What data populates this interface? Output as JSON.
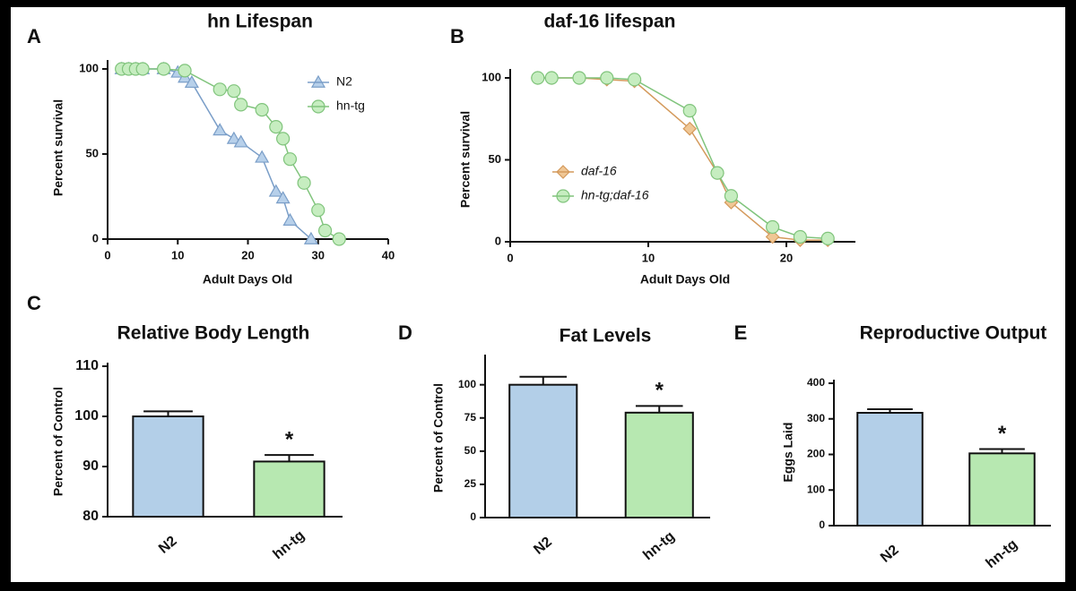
{
  "chart_data": [
    {
      "type": "line",
      "label": "A",
      "title": "hn Lifespan",
      "x_label": "Adult Days Old",
      "y_label": "Percent survival",
      "xlim": [
        0,
        40
      ],
      "xticks": [
        0,
        10,
        20,
        30,
        40
      ],
      "ylim": [
        0,
        100
      ],
      "yticks": [
        0,
        50,
        100
      ],
      "legend": "upper right",
      "series": [
        {
          "name": "N2",
          "color": "#b7d0ea",
          "stroke": "#7a9ec8",
          "marker": "triangle",
          "x": [
            2,
            3,
            4,
            5,
            8,
            10,
            11,
            12,
            16,
            18,
            19,
            22,
            24,
            25,
            26,
            29
          ],
          "values": [
            100,
            100,
            100,
            100,
            100,
            98,
            95,
            92,
            64,
            59,
            57,
            48,
            28,
            24,
            11,
            0
          ]
        },
        {
          "name": "hn-tg",
          "color": "#c6edc0",
          "stroke": "#80c47c",
          "marker": "circle",
          "x": [
            2,
            3,
            4,
            5,
            8,
            11,
            16,
            18,
            19,
            22,
            24,
            25,
            26,
            28,
            30,
            31,
            33
          ],
          "values": [
            100,
            100,
            100,
            100,
            100,
            99,
            88,
            87,
            79,
            76,
            66,
            59,
            47,
            33,
            17,
            5,
            0
          ]
        }
      ]
    },
    {
      "type": "line",
      "label": "B",
      "title": "daf-16 lifespan",
      "x_label": "Adult Days Old",
      "y_label": "Percent survival",
      "xlim": [
        0,
        25
      ],
      "xticks": [
        0,
        10,
        20
      ],
      "ylim": [
        0,
        100
      ],
      "yticks": [
        0,
        50,
        100
      ],
      "legend": "center left",
      "series": [
        {
          "name": "daf-16",
          "color": "#f0c795",
          "stroke": "#d49a5c",
          "marker": "diamond",
          "x": [
            2,
            3,
            5,
            7,
            9,
            13,
            15,
            16,
            19,
            21,
            23
          ],
          "values": [
            100,
            100,
            100,
            99,
            98,
            69,
            42,
            24,
            3,
            1,
            1
          ]
        },
        {
          "name": "hn-tg;daf-16",
          "color": "#c6edc0",
          "stroke": "#80c47c",
          "marker": "circle",
          "x": [
            2,
            3,
            5,
            7,
            9,
            13,
            15,
            16,
            19,
            21,
            23
          ],
          "values": [
            100,
            100,
            100,
            100,
            99,
            80,
            42,
            28,
            9,
            3,
            2
          ]
        }
      ]
    },
    {
      "type": "bar",
      "label": "C",
      "title": "Relative Body Length",
      "y_label": "Percent of Control",
      "categories": [
        "N2",
        "hn-tg"
      ],
      "values": [
        100,
        91
      ],
      "errors": [
        1,
        1.3
      ],
      "colors": [
        "#b3cfe8",
        "#b7e8b1"
      ],
      "ylim": [
        80,
        110
      ],
      "yticks": [
        80,
        90,
        100,
        110
      ],
      "annotation": "*"
    },
    {
      "type": "bar",
      "label": "D",
      "title": "Fat Levels",
      "y_label": "Percent of Control",
      "categories": [
        "N2",
        "hn-tg"
      ],
      "values": [
        100,
        79
      ],
      "errors": [
        6,
        5
      ],
      "colors": [
        "#b3cfe8",
        "#b7e8b1"
      ],
      "ylim": [
        0,
        120
      ],
      "yticks": [
        0,
        25,
        50,
        75,
        100
      ],
      "annotation": "*"
    },
    {
      "type": "bar",
      "label": "E",
      "title": "Reproductive Output",
      "y_label": "Eggs Laid",
      "categories": [
        "N2",
        "hn-tg"
      ],
      "values": [
        317,
        203
      ],
      "errors": [
        10,
        12
      ],
      "colors": [
        "#b3cfe8",
        "#b7e8b1"
      ],
      "ylim": [
        0,
        400
      ],
      "yticks": [
        0,
        100,
        200,
        300,
        400
      ],
      "annotation": "*"
    }
  ]
}
